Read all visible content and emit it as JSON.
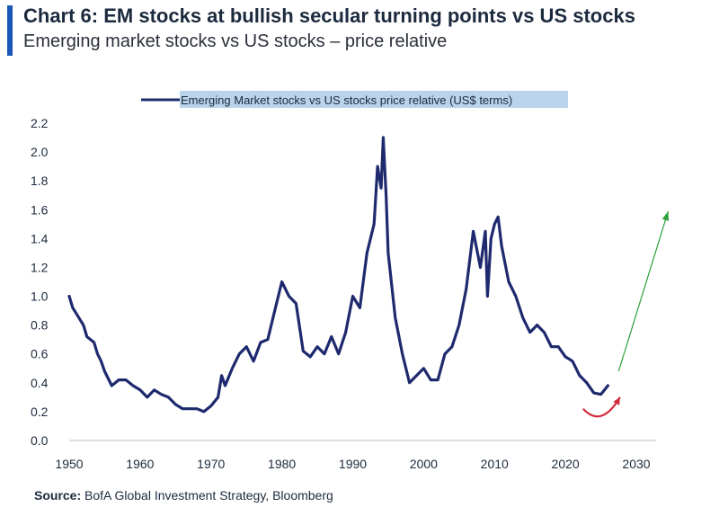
{
  "header": {
    "title": "Chart 6: EM stocks at bullish secular turning points vs US stocks",
    "subtitle": "Emerging market stocks vs US stocks – price relative"
  },
  "footer": {
    "source_label": "Source:",
    "source_text": "BofA Global Investment Strategy, Bloomberg"
  },
  "chart_data": {
    "type": "line",
    "title": "",
    "xlabel": "",
    "ylabel": "",
    "xlim": [
      1950,
      2030
    ],
    "ylim": [
      0.0,
      2.2
    ],
    "x_ticks": [
      1950,
      1960,
      1970,
      1980,
      1990,
      2000,
      2010,
      2020,
      2030
    ],
    "y_ticks": [
      "0.0",
      "0.2",
      "0.4",
      "0.6",
      "0.8",
      "1.0",
      "1.2",
      "1.4",
      "1.6",
      "1.8",
      "2.0",
      "2.2"
    ],
    "grid": false,
    "legend_position": "top-center",
    "series": [
      {
        "name": "Emerging Market stocks vs US stocks price relative (US$ terms)",
        "color": "#1f2a6e",
        "x": [
          1950,
          1950.5,
          1951,
          1952,
          1952.5,
          1953,
          1953.5,
          1954,
          1954.5,
          1955,
          1956,
          1957,
          1958,
          1959,
          1960,
          1961,
          1962,
          1963,
          1964,
          1965,
          1966,
          1967,
          1968,
          1969,
          1970,
          1971,
          1971.5,
          1972,
          1973,
          1974,
          1975,
          1976,
          1977,
          1978,
          1979,
          1980,
          1981,
          1982,
          1983,
          1984,
          1985,
          1986,
          1987,
          1988,
          1989,
          1990,
          1991,
          1992,
          1993,
          1993.5,
          1994,
          1994.3,
          1994.7,
          1995,
          1996,
          1997,
          1998,
          1999,
          2000,
          2001,
          2002,
          2003,
          2004,
          2005,
          2006,
          2007,
          2008,
          2008.7,
          2009,
          2009.5,
          2010,
          2010.5,
          2011,
          2012,
          2013,
          2014,
          2015,
          2016,
          2017,
          2018,
          2019,
          2020,
          2021,
          2022,
          2023,
          2024,
          2025,
          2026
        ],
        "y": [
          1.0,
          0.92,
          0.88,
          0.8,
          0.72,
          0.7,
          0.68,
          0.6,
          0.55,
          0.48,
          0.38,
          0.42,
          0.42,
          0.38,
          0.35,
          0.3,
          0.35,
          0.32,
          0.3,
          0.25,
          0.22,
          0.22,
          0.22,
          0.2,
          0.24,
          0.3,
          0.45,
          0.38,
          0.5,
          0.6,
          0.65,
          0.55,
          0.68,
          0.7,
          0.9,
          1.1,
          1.0,
          0.95,
          0.62,
          0.58,
          0.65,
          0.6,
          0.72,
          0.6,
          0.75,
          1.0,
          0.92,
          1.3,
          1.5,
          1.9,
          1.75,
          2.1,
          1.7,
          1.3,
          0.85,
          0.6,
          0.4,
          0.45,
          0.5,
          0.42,
          0.42,
          0.6,
          0.65,
          0.8,
          1.05,
          1.45,
          1.2,
          1.45,
          1.0,
          1.4,
          1.5,
          1.55,
          1.35,
          1.1,
          1.0,
          0.85,
          0.75,
          0.8,
          0.75,
          0.65,
          0.65,
          0.58,
          0.55,
          0.45,
          0.4,
          0.33,
          0.32,
          0.38
        ]
      }
    ],
    "annotations": [
      {
        "type": "curved-arrow",
        "color": "#d42a3c",
        "from": [
          2022.5,
          0.22
        ],
        "to": [
          2027.7,
          0.3
        ]
      },
      {
        "type": "arrow",
        "color": "#2ea03a",
        "from": [
          2027.5,
          0.48
        ],
        "to": [
          2034.5,
          1.59
        ]
      }
    ]
  }
}
